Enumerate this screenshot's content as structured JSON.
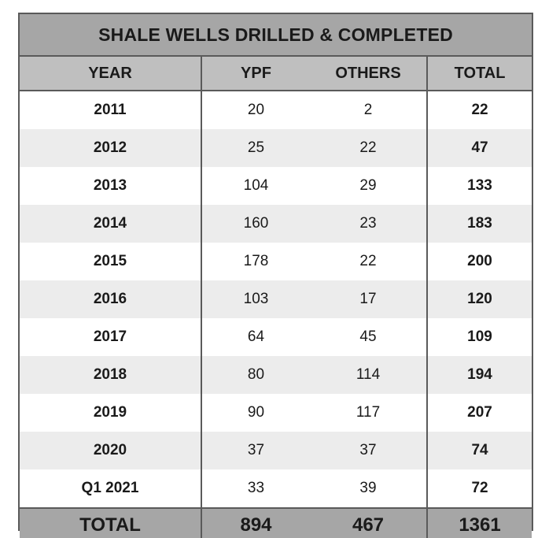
{
  "table": {
    "title": "SHALE WELLS DRILLED & COMPLETED",
    "headers": [
      "YEAR",
      "YPF",
      "OTHERS",
      "TOTAL"
    ],
    "rows": [
      {
        "year": "2011",
        "ypf": "20",
        "others": "2",
        "total": "22"
      },
      {
        "year": "2012",
        "ypf": "25",
        "others": "22",
        "total": "47"
      },
      {
        "year": "2013",
        "ypf": "104",
        "others": "29",
        "total": "133"
      },
      {
        "year": "2014",
        "ypf": "160",
        "others": "23",
        "total": "183"
      },
      {
        "year": "2015",
        "ypf": "178",
        "others": "22",
        "total": "200"
      },
      {
        "year": "2016",
        "ypf": "103",
        "others": "17",
        "total": "120"
      },
      {
        "year": "2017",
        "ypf": "64",
        "others": "45",
        "total": "109"
      },
      {
        "year": "2018",
        "ypf": "80",
        "others": "114",
        "total": "194"
      },
      {
        "year": "2019",
        "ypf": "90",
        "others": "117",
        "total": "207"
      },
      {
        "year": "2020",
        "ypf": "37",
        "others": "37",
        "total": "74"
      },
      {
        "year": "Q1 2021",
        "ypf": "33",
        "others": "39",
        "total": "72"
      }
    ],
    "totals": {
      "label": "TOTAL",
      "ypf": "894",
      "others": "467",
      "total": "1361"
    }
  },
  "colors": {
    "title_bg": "#a6a6a6",
    "header_bg": "#bfbfbf",
    "stripe_bg": "#ececec",
    "border": "#5a5a5a"
  }
}
